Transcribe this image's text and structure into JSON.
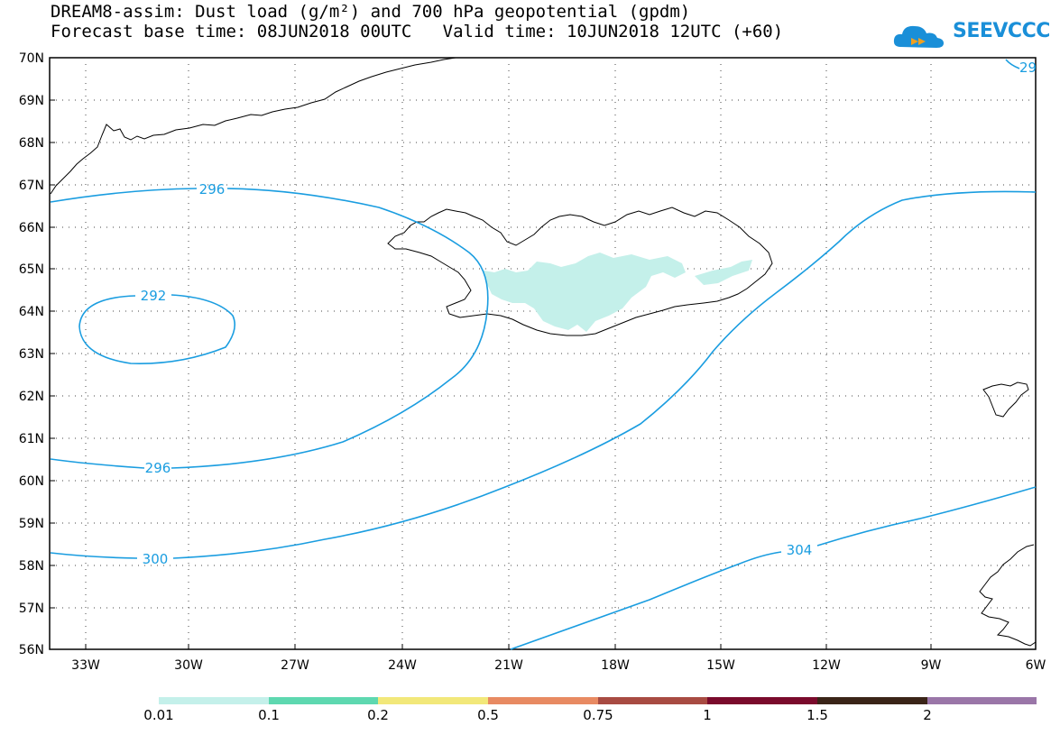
{
  "title_line1": "DREAM8-assim: Dust load (g/m²) and 700 hPa geopotential (gpdm)",
  "title_line2": "Forecast base time: 08JUN2018 00UTC   Valid time: 10JUN2018 12UTC (+60)",
  "logo_text": "SEEVCCC",
  "lat_labels": [
    "70N",
    "69N",
    "68N",
    "67N",
    "66N",
    "65N",
    "64N",
    "63N",
    "62N",
    "61N",
    "60N",
    "59N",
    "58N",
    "57N",
    "56N"
  ],
  "lon_labels": [
    "33W",
    "30W",
    "27W",
    "24W",
    "21W",
    "18W",
    "15W",
    "12W",
    "9W",
    "6W"
  ],
  "contour_labels": {
    "c296_top": "296",
    "c292": "292",
    "c296_bottom": "296",
    "c300": "300",
    "c304": "304",
    "c29_corner": "29"
  },
  "colors": {
    "contour": "#1a9de0",
    "dust_low": "#c4f0ea",
    "coast": "#000000"
  },
  "colorbar": {
    "labels": [
      "0.01",
      "0.1",
      "0.2",
      "0.5",
      "0.75",
      "1",
      "1.5",
      "2"
    ],
    "colors": [
      "#c4f0ea",
      "#5ed8b0",
      "#f2e87a",
      "#e88a62",
      "#a84b42",
      "#7a0a2c",
      "#3a2418",
      "#9a76a8"
    ]
  }
}
